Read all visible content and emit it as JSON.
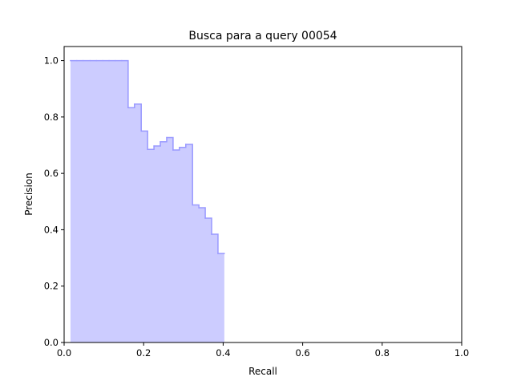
{
  "chart_data": {
    "type": "area",
    "title": "Busca para a query 00054",
    "xlabel": "Recall",
    "ylabel": "Precision",
    "xlim": [
      0.0,
      1.0
    ],
    "ylim": [
      0.0,
      1.05
    ],
    "xticks": [
      "0.0",
      "0.2",
      "0.4",
      "0.6",
      "0.8",
      "1.0"
    ],
    "yticks": [
      "0.0",
      "0.2",
      "0.4",
      "0.6",
      "0.8",
      "1.0"
    ],
    "grid": false,
    "legend": "none",
    "step": "post",
    "fill_color": "#ccccff",
    "line_color": "#9999ff",
    "series": [
      {
        "x": [
          0.016,
          0.032,
          0.048,
          0.065,
          0.081,
          0.097,
          0.113,
          0.129,
          0.145,
          0.161,
          0.177,
          0.194,
          0.21,
          0.226,
          0.242,
          0.258,
          0.274,
          0.29,
          0.306,
          0.323,
          0.339,
          0.355,
          0.371,
          0.387,
          0.403
        ],
        "y": [
          1.0,
          1.0,
          1.0,
          1.0,
          1.0,
          1.0,
          1.0,
          1.0,
          1.0,
          0.833,
          0.846,
          0.75,
          0.685,
          0.697,
          0.712,
          0.727,
          0.683,
          0.692,
          0.703,
          0.488,
          0.478,
          0.441,
          0.384,
          0.316,
          0.316
        ]
      }
    ]
  }
}
